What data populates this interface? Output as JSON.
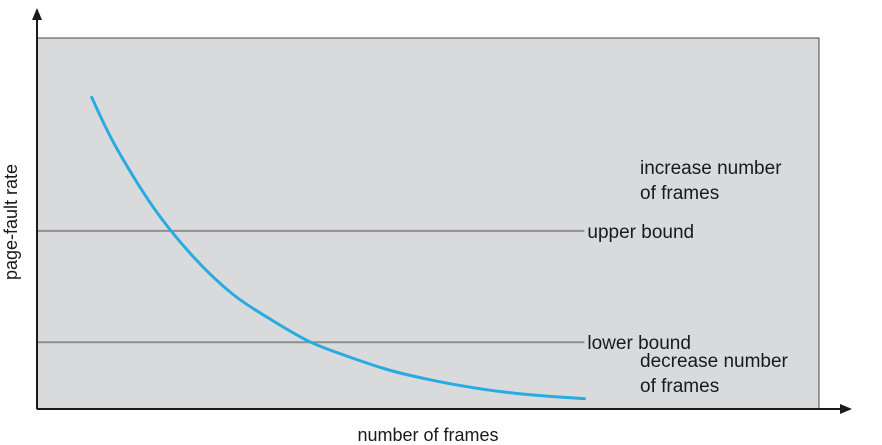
{
  "chart_data": {
    "type": "line",
    "title": "",
    "xlabel": "number of frames",
    "ylabel": "page-fault rate",
    "grid": false,
    "legend": "none",
    "xlim": [
      0,
      10
    ],
    "ylim": [
      0,
      10
    ],
    "series": [
      {
        "x": [
          0.7,
          1.0,
          1.5,
          2.0,
          2.5,
          3.0,
          3.5,
          4.0,
          4.5,
          5.0,
          5.5,
          6.0,
          6.5,
          7.0
        ],
        "values": [
          8.4,
          7.1,
          5.4,
          4.1,
          3.1,
          2.4,
          1.8,
          1.4,
          1.05,
          0.8,
          0.6,
          0.45,
          0.35,
          0.28
        ]
      }
    ],
    "reference_lines": [
      {
        "label": "upper bound",
        "y": 4.8,
        "x_end": 7.0
      },
      {
        "label": "lower bound",
        "y": 1.8,
        "x_end": 7.0
      }
    ],
    "annotations": [
      {
        "lines": [
          "increase number",
          "of frames"
        ]
      },
      {
        "lines": [
          "decrease number",
          "of frames"
        ]
      }
    ],
    "colors": {
      "plot_bg": "#d9dadc",
      "curve": "#29abe2",
      "bound_line": "#8e8e8e",
      "axis": "#1a1a1a"
    }
  }
}
